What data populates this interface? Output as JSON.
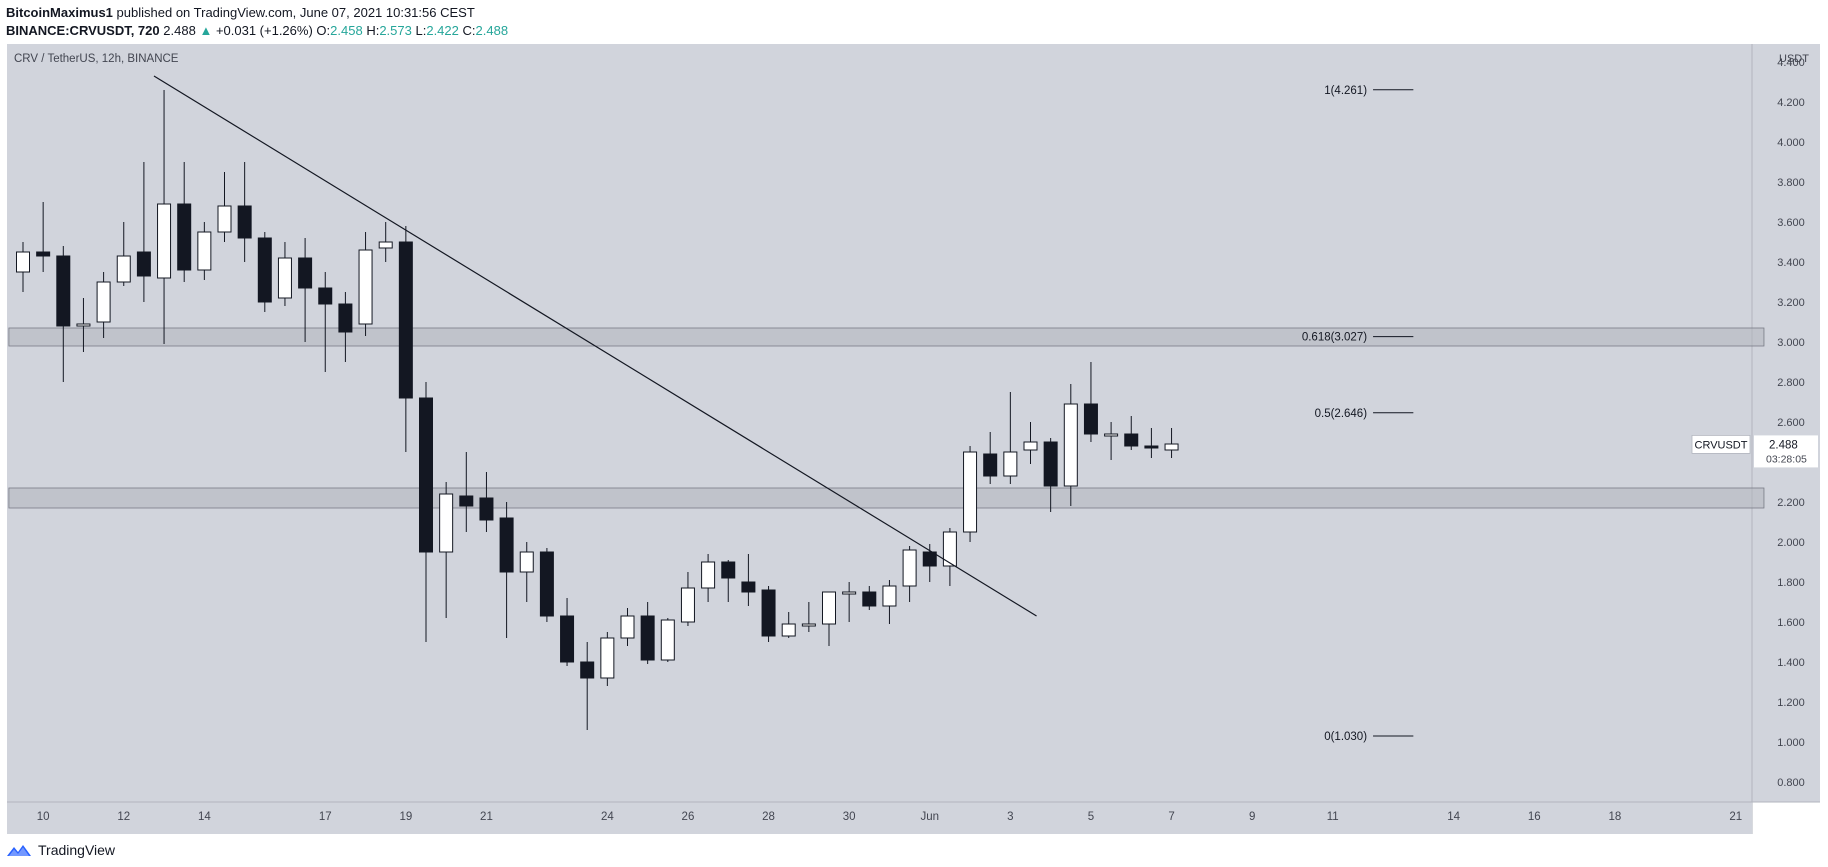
{
  "header": {
    "author": "BitcoinMaximus1",
    "published": "published on TradingView.com, June 07, 2021 10:31:56 CEST",
    "symbol": "BINANCE:CRVUSDT, 720",
    "last": "2.488",
    "change": "+0.031 (+1.26%)",
    "open_label": "O:",
    "open": "2.458",
    "high_label": "H:",
    "high": "2.573",
    "low_label": "L:",
    "low": "2.422",
    "close_label": "C:",
    "close": "2.488",
    "up_arrow": "▲"
  },
  "chart_data": {
    "type": "candlestick",
    "title": "CRV / TetherUS, 12h, BINANCE",
    "currency": "USDT",
    "ylim": [
      0.8,
      4.4
    ],
    "y_ticks": [
      "0.800",
      "1.000",
      "1.200",
      "1.400",
      "1.600",
      "1.800",
      "2.000",
      "2.200",
      "2.400",
      "2.600",
      "2.800",
      "3.000",
      "3.200",
      "3.400",
      "3.600",
      "3.800",
      "4.000",
      "4.200",
      "4.400"
    ],
    "x_ticks": [
      {
        "label": "10",
        "t": 1
      },
      {
        "label": "12",
        "t": 5
      },
      {
        "label": "14",
        "t": 9
      },
      {
        "label": "17",
        "t": 15
      },
      {
        "label": "19",
        "t": 19
      },
      {
        "label": "21",
        "t": 23
      },
      {
        "label": "24",
        "t": 29
      },
      {
        "label": "26",
        "t": 33
      },
      {
        "label": "28",
        "t": 37
      },
      {
        "label": "30",
        "t": 41
      },
      {
        "label": "Jun",
        "t": 45
      },
      {
        "label": "3",
        "t": 49
      },
      {
        "label": "5",
        "t": 53
      },
      {
        "label": "7",
        "t": 57
      },
      {
        "label": "9",
        "t": 61
      },
      {
        "label": "11",
        "t": 65
      },
      {
        "label": "14",
        "t": 71
      },
      {
        "label": "16",
        "t": 75
      },
      {
        "label": "18",
        "t": 79
      },
      {
        "label": "21",
        "t": 85
      }
    ],
    "candles": [
      {
        "t": 0,
        "o": 3.35,
        "h": 3.5,
        "l": 3.25,
        "c": 3.45
      },
      {
        "t": 1,
        "o": 3.45,
        "h": 3.7,
        "l": 3.35,
        "c": 3.43
      },
      {
        "t": 2,
        "o": 3.43,
        "h": 3.48,
        "l": 2.8,
        "c": 3.08
      },
      {
        "t": 3,
        "o": 3.08,
        "h": 3.22,
        "l": 2.95,
        "c": 3.09
      },
      {
        "t": 4,
        "o": 3.1,
        "h": 3.35,
        "l": 3.02,
        "c": 3.3
      },
      {
        "t": 5,
        "o": 3.3,
        "h": 3.6,
        "l": 3.28,
        "c": 3.43
      },
      {
        "t": 6,
        "o": 3.45,
        "h": 3.9,
        "l": 3.2,
        "c": 3.33
      },
      {
        "t": 7,
        "o": 3.32,
        "h": 4.26,
        "l": 2.99,
        "c": 3.69
      },
      {
        "t": 8,
        "o": 3.69,
        "h": 3.9,
        "l": 3.3,
        "c": 3.36
      },
      {
        "t": 9,
        "o": 3.36,
        "h": 3.6,
        "l": 3.31,
        "c": 3.55
      },
      {
        "t": 10,
        "o": 3.55,
        "h": 3.85,
        "l": 3.5,
        "c": 3.68
      },
      {
        "t": 11,
        "o": 3.68,
        "h": 3.9,
        "l": 3.4,
        "c": 3.52
      },
      {
        "t": 12,
        "o": 3.52,
        "h": 3.55,
        "l": 3.15,
        "c": 3.2
      },
      {
        "t": 13,
        "o": 3.22,
        "h": 3.5,
        "l": 3.18,
        "c": 3.42
      },
      {
        "t": 14,
        "o": 3.42,
        "h": 3.52,
        "l": 3.0,
        "c": 3.27
      },
      {
        "t": 15,
        "o": 3.27,
        "h": 3.35,
        "l": 2.85,
        "c": 3.19
      },
      {
        "t": 16,
        "o": 3.19,
        "h": 3.25,
        "l": 2.9,
        "c": 3.05
      },
      {
        "t": 17,
        "o": 3.09,
        "h": 3.55,
        "l": 3.03,
        "c": 3.46
      },
      {
        "t": 18,
        "o": 3.47,
        "h": 3.6,
        "l": 3.4,
        "c": 3.5
      },
      {
        "t": 19,
        "o": 3.5,
        "h": 3.58,
        "l": 2.45,
        "c": 2.72
      },
      {
        "t": 20,
        "o": 2.72,
        "h": 2.8,
        "l": 1.5,
        "c": 1.95
      },
      {
        "t": 21,
        "o": 1.95,
        "h": 2.3,
        "l": 1.62,
        "c": 2.24
      },
      {
        "t": 22,
        "o": 2.23,
        "h": 2.45,
        "l": 2.05,
        "c": 2.18
      },
      {
        "t": 23,
        "o": 2.22,
        "h": 2.35,
        "l": 2.05,
        "c": 2.11
      },
      {
        "t": 24,
        "o": 2.12,
        "h": 2.2,
        "l": 1.52,
        "c": 1.85
      },
      {
        "t": 25,
        "o": 1.85,
        "h": 2.0,
        "l": 1.7,
        "c": 1.95
      },
      {
        "t": 26,
        "o": 1.95,
        "h": 1.97,
        "l": 1.6,
        "c": 1.63
      },
      {
        "t": 27,
        "o": 1.63,
        "h": 1.72,
        "l": 1.38,
        "c": 1.4
      },
      {
        "t": 28,
        "o": 1.4,
        "h": 1.5,
        "l": 1.06,
        "c": 1.32
      },
      {
        "t": 29,
        "o": 1.32,
        "h": 1.55,
        "l": 1.28,
        "c": 1.52
      },
      {
        "t": 30,
        "o": 1.52,
        "h": 1.67,
        "l": 1.48,
        "c": 1.63
      },
      {
        "t": 31,
        "o": 1.63,
        "h": 1.7,
        "l": 1.39,
        "c": 1.41
      },
      {
        "t": 32,
        "o": 1.41,
        "h": 1.62,
        "l": 1.4,
        "c": 1.61
      },
      {
        "t": 33,
        "o": 1.6,
        "h": 1.85,
        "l": 1.58,
        "c": 1.77
      },
      {
        "t": 34,
        "o": 1.77,
        "h": 1.94,
        "l": 1.7,
        "c": 1.9
      },
      {
        "t": 35,
        "o": 1.9,
        "h": 1.91,
        "l": 1.7,
        "c": 1.82
      },
      {
        "t": 36,
        "o": 1.8,
        "h": 1.94,
        "l": 1.68,
        "c": 1.75
      },
      {
        "t": 37,
        "o": 1.76,
        "h": 1.78,
        "l": 1.5,
        "c": 1.53
      },
      {
        "t": 38,
        "o": 1.53,
        "h": 1.65,
        "l": 1.52,
        "c": 1.59
      },
      {
        "t": 39,
        "o": 1.58,
        "h": 1.7,
        "l": 1.55,
        "c": 1.59
      },
      {
        "t": 40,
        "o": 1.59,
        "h": 1.75,
        "l": 1.48,
        "c": 1.75
      },
      {
        "t": 41,
        "o": 1.74,
        "h": 1.8,
        "l": 1.6,
        "c": 1.75
      },
      {
        "t": 42,
        "o": 1.75,
        "h": 1.78,
        "l": 1.66,
        "c": 1.68
      },
      {
        "t": 43,
        "o": 1.68,
        "h": 1.81,
        "l": 1.59,
        "c": 1.78
      },
      {
        "t": 44,
        "o": 1.78,
        "h": 1.98,
        "l": 1.7,
        "c": 1.96
      },
      {
        "t": 45,
        "o": 1.95,
        "h": 1.99,
        "l": 1.8,
        "c": 1.88
      },
      {
        "t": 46,
        "o": 1.88,
        "h": 2.07,
        "l": 1.78,
        "c": 2.05
      },
      {
        "t": 47,
        "o": 2.05,
        "h": 2.48,
        "l": 2.0,
        "c": 2.45
      },
      {
        "t": 48,
        "o": 2.44,
        "h": 2.55,
        "l": 2.29,
        "c": 2.33
      },
      {
        "t": 49,
        "o": 2.33,
        "h": 2.75,
        "l": 2.29,
        "c": 2.45
      },
      {
        "t": 50,
        "o": 2.46,
        "h": 2.6,
        "l": 2.39,
        "c": 2.5
      },
      {
        "t": 51,
        "o": 2.5,
        "h": 2.52,
        "l": 2.15,
        "c": 2.28
      },
      {
        "t": 52,
        "o": 2.28,
        "h": 2.79,
        "l": 2.18,
        "c": 2.69
      },
      {
        "t": 53,
        "o": 2.69,
        "h": 2.9,
        "l": 2.5,
        "c": 2.54
      },
      {
        "t": 54,
        "o": 2.54,
        "h": 2.6,
        "l": 2.41,
        "c": 2.54
      },
      {
        "t": 55,
        "o": 2.54,
        "h": 2.63,
        "l": 2.46,
        "c": 2.48
      },
      {
        "t": 56,
        "o": 2.48,
        "h": 2.57,
        "l": 2.42,
        "c": 2.47
      },
      {
        "t": 57,
        "o": 2.46,
        "h": 2.57,
        "l": 2.42,
        "c": 2.49
      }
    ],
    "zones": [
      {
        "from_t": -0.7,
        "to_t": 86.4,
        "low": 2.98,
        "high": 3.07
      },
      {
        "from_t": -0.7,
        "to_t": 86.4,
        "low": 2.17,
        "high": 2.27
      }
    ],
    "trendline": {
      "t1": 6.5,
      "p1": 4.33,
      "t2": 50.3,
      "p2": 1.63
    },
    "fib_levels": [
      {
        "label": "1(4.261)",
        "value": 4.261
      },
      {
        "label": "0.618(3.027)",
        "value": 3.027
      },
      {
        "label": "0.5(2.646)",
        "value": 2.646
      },
      {
        "label": "0(1.030)",
        "value": 1.03
      }
    ],
    "fib_t_range": [
      67,
      69
    ],
    "last_price": {
      "symbol": "CRVUSDT",
      "value": 2.488,
      "price_label": "2.488",
      "countdown": "03:28:05"
    },
    "colors": {
      "background": "#d1d4dc",
      "up_fill": "#ffffff",
      "down_fill": "#131722",
      "outline": "#131722",
      "zone_fill": "#b2b5be",
      "text": "#131722"
    }
  },
  "footer": {
    "brand": "TradingView"
  }
}
